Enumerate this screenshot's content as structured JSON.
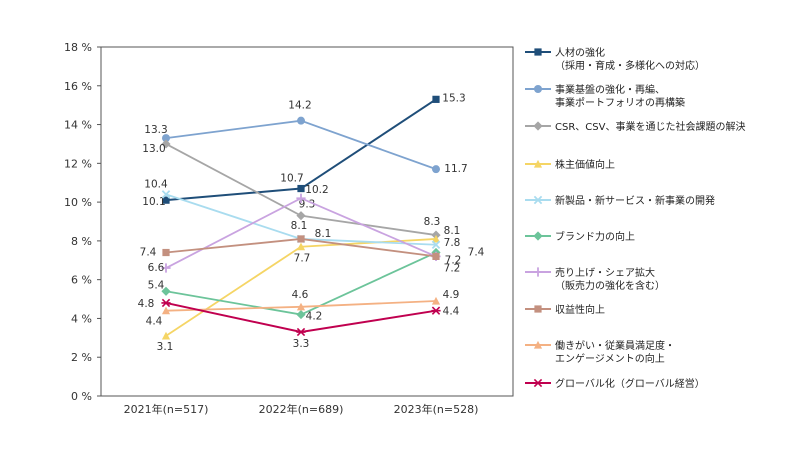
{
  "chart_data": {
    "type": "line",
    "categories": [
      "2021年(n=517)",
      "2022年(n=689)",
      "2023年(n=528)"
    ],
    "y_ticks": [
      "0 %",
      "2 %",
      "4 %",
      "6 %",
      "8 %",
      "10 %",
      "12 %",
      "14 %",
      "16 %",
      "18 %"
    ],
    "ylim": [
      0,
      18
    ],
    "grid": false,
    "legend_position": "right",
    "series": [
      {
        "name": "人材の強化",
        "name_line2": "（採用・育成・多様化への対応）",
        "color": "#1f4e79",
        "marker": "square",
        "values": [
          10.1,
          10.7,
          15.3
        ],
        "labels": [
          "10.1",
          "10.7",
          "15.3"
        ]
      },
      {
        "name": "事業基盤の強化・再編、",
        "name_line2": "事業ポートフォリオの再構築",
        "color": "#7ea3cf",
        "marker": "circle",
        "values": [
          13.3,
          14.2,
          11.7
        ],
        "labels": [
          "13.3",
          "14.2",
          "11.7"
        ]
      },
      {
        "name": "CSR、CSV、事業を通じた社会課題の解決",
        "name_line2": "",
        "color": "#a6a6a6",
        "marker": "diamond",
        "values": [
          13.0,
          9.3,
          8.3
        ],
        "labels": [
          "13.0",
          "9.3",
          "8.3"
        ]
      },
      {
        "name": "株主価値向上",
        "name_line2": "",
        "color": "#f5d565",
        "marker": "triangle",
        "values": [
          3.1,
          7.7,
          8.1
        ],
        "labels": [
          "3.1",
          "7.7",
          "8.1"
        ]
      },
      {
        "name": "新製品・新サービス・新事業の開発",
        "name_line2": "",
        "color": "#a9dcef",
        "marker": "x",
        "values": [
          10.4,
          8.1,
          7.8
        ],
        "labels": [
          "10.4",
          "8.1",
          "7.8"
        ]
      },
      {
        "name": "ブランド力の向上",
        "name_line2": "",
        "color": "#6cc49a",
        "marker": "diamond",
        "values": [
          5.4,
          4.2,
          7.4
        ],
        "labels": [
          "5.4",
          "4.2",
          "7.4"
        ]
      },
      {
        "name": "売り上げ・シェア拡大",
        "name_line2": "（販売力の強化を含む）",
        "color": "#c9a3e0",
        "marker": "plus",
        "values": [
          6.6,
          10.2,
          7.2
        ],
        "labels": [
          "6.6",
          "10.2",
          "7.2"
        ]
      },
      {
        "name": "収益性向上",
        "name_line2": "",
        "color": "#c3907f",
        "marker": "square",
        "values": [
          7.4,
          8.1,
          7.2
        ],
        "labels": [
          "7.4",
          "8.1",
          "7.2"
        ]
      },
      {
        "name": "働きがい・従業員満足度・",
        "name_line2": "エンゲージメントの向上",
        "color": "#f4b183",
        "marker": "triangle",
        "values": [
          4.4,
          4.6,
          4.9
        ],
        "labels": [
          "4.4",
          "4.6",
          "4.9"
        ]
      },
      {
        "name": "グローバル化（グローバル経営）",
        "name_line2": "",
        "color": "#c0004f",
        "marker": "star",
        "values": [
          4.8,
          3.3,
          4.4
        ],
        "labels": [
          "4.8",
          "3.3",
          "4.4"
        ]
      }
    ]
  }
}
